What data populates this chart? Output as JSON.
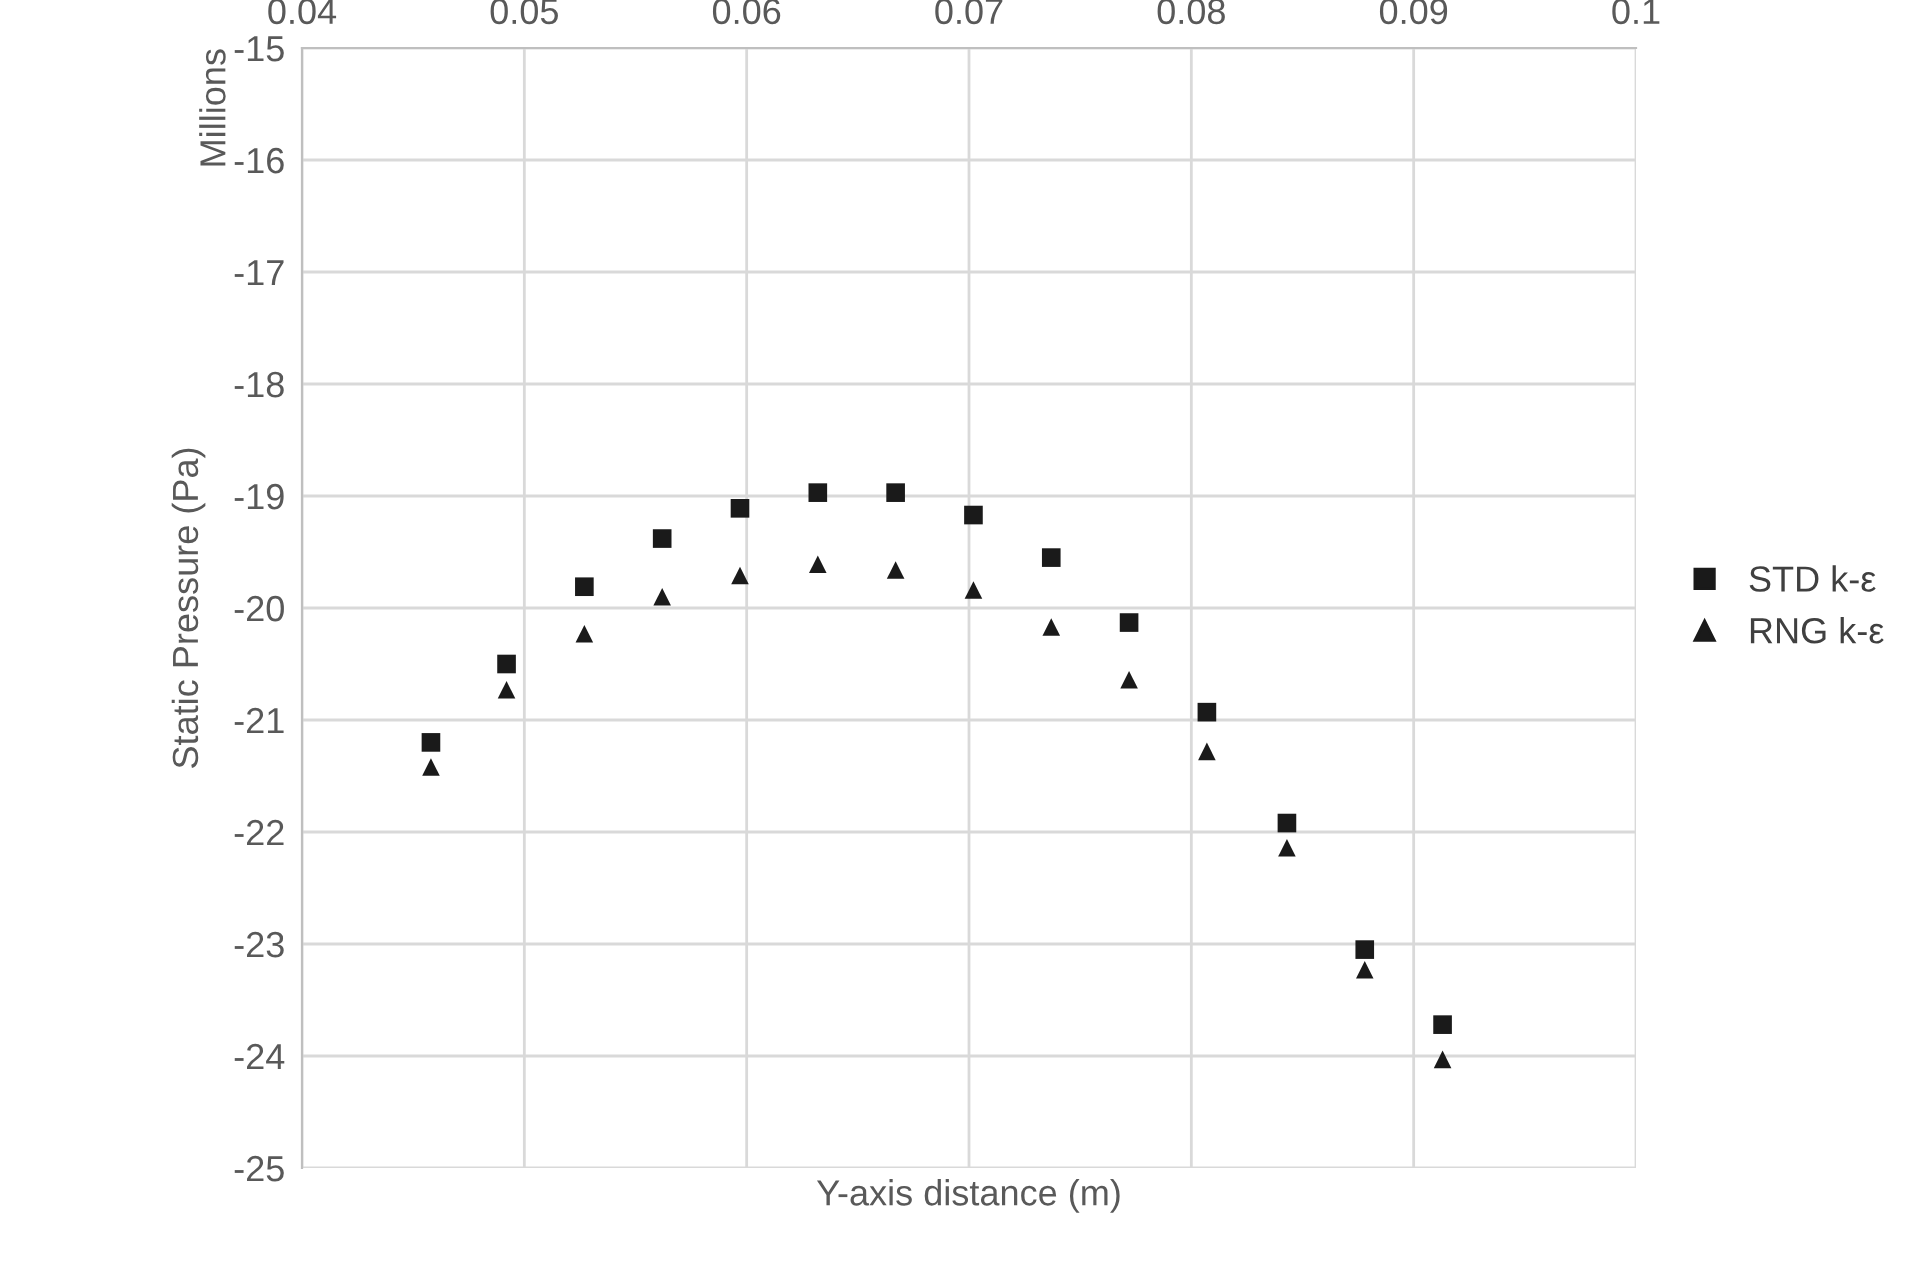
{
  "chart_data": {
    "type": "scatter",
    "xlabel": "Y-axis distance (m)",
    "ylabel": "Static Pressure (Pa)",
    "annotations": [
      "Millions"
    ],
    "xlim": [
      0.04,
      0.1
    ],
    "xticks": [
      0.04,
      0.05,
      0.06,
      0.07,
      0.08,
      0.09,
      0.1
    ],
    "ylim": [
      -25,
      -15
    ],
    "yticks": [
      -25,
      -24,
      -23,
      -22,
      -21,
      -20,
      -19,
      -18,
      -17,
      -16,
      -15
    ],
    "grid": true,
    "legend": "right",
    "series": [
      {
        "name": "STD k-ε",
        "color": "#1a1a1a",
        "marker": "square",
        "x": [
          0.0458,
          0.0492,
          0.0527,
          0.0562,
          0.0597,
          0.0632,
          0.0667,
          0.0702,
          0.0737,
          0.0772,
          0.0807,
          0.0843,
          0.0878,
          0.0913
        ],
        "values": [
          -21.2,
          -20.5,
          -19.81,
          -19.38,
          -19.11,
          -18.97,
          -18.97,
          -19.17,
          -19.55,
          -20.13,
          -20.93,
          -21.92,
          -23.05,
          -23.72
        ]
      },
      {
        "name": "RNG k-ε",
        "color": "#1a1a1a",
        "marker": "triangle",
        "x": [
          0.0458,
          0.0492,
          0.0527,
          0.0562,
          0.0597,
          0.0632,
          0.0667,
          0.0702,
          0.0737,
          0.0772,
          0.0807,
          0.0843,
          0.0878,
          0.0913
        ],
        "values": [
          -21.42,
          -20.73,
          -20.23,
          -19.9,
          -19.71,
          -19.61,
          -19.66,
          -19.84,
          -20.17,
          -20.64,
          -21.28,
          -22.14,
          -23.23,
          -24.03
        ]
      }
    ]
  }
}
